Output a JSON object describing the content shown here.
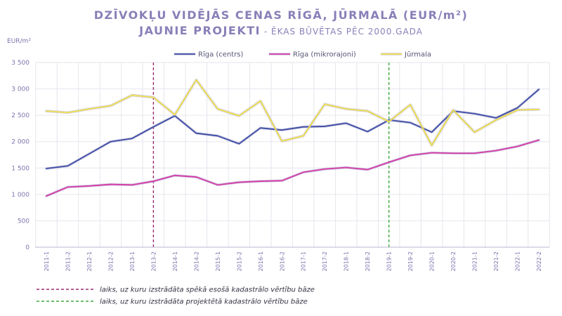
{
  "chart_data": {
    "type": "line",
    "title": "DZĪVOKĻU VIDĒJĀS CENAS RĪGĀ, JŪRMALĀ (EUR/m²)",
    "subtitle": "JAUNIE PROJEKTI",
    "subtitle_tail": " - ĒKAS BŪVĒTAS PĒC 2000.GADA",
    "ylabel": "EUR/m²",
    "ylim": [
      0,
      3500
    ],
    "yticks": [
      0,
      500,
      1000,
      1500,
      2000,
      2500,
      3000,
      3500
    ],
    "ytick_labels": [
      "0",
      "500",
      "1 000",
      "1 500",
      "2 000",
      "2 500",
      "3 000",
      "3 500"
    ],
    "grid": true,
    "legend_position": "top-center",
    "categories": [
      "2011-1",
      "2011-2",
      "2012-1",
      "2012-2",
      "2013-1",
      "2013-2",
      "2014-1",
      "2014-2",
      "2015-1",
      "2015-2",
      "2016-1",
      "2016-2",
      "2017-1",
      "2017-2",
      "2018-1",
      "2018-2",
      "2019-1",
      "2019-2",
      "2020-1",
      "2020-2",
      "2021-1",
      "2021-2",
      "2022-1",
      "2022-2"
    ],
    "series": [
      {
        "name": "Rīga (centrs)",
        "color": "#3f4ea6",
        "values": [
          1490,
          1540,
          1770,
          2000,
          2060,
          2280,
          2490,
          2160,
          2110,
          1960,
          2260,
          2220,
          2280,
          2290,
          2350,
          2190,
          2410,
          2360,
          2180,
          2580,
          2530,
          2450,
          2640,
          2990
        ]
      },
      {
        "name": "Rīga (mikrorajoni)",
        "color": "#d63aa8",
        "values": [
          970,
          1140,
          1160,
          1190,
          1180,
          1250,
          1360,
          1330,
          1180,
          1230,
          1250,
          1260,
          1420,
          1480,
          1510,
          1470,
          1610,
          1740,
          1790,
          1780,
          1780,
          1830,
          1910,
          2030
        ]
      },
      {
        "name": "Jūrmala",
        "color": "#f2e24a",
        "values": [
          2580,
          2550,
          2620,
          2680,
          2880,
          2840,
          2510,
          3170,
          2620,
          2490,
          2770,
          2010,
          2110,
          2710,
          2620,
          2580,
          2380,
          2700,
          1930,
          2600,
          2180,
          2410,
          2600,
          2610
        ]
      }
    ],
    "annotations": [
      {
        "type": "vline",
        "category": "2013-2",
        "color": "#9b2a6f",
        "label": "laiks, uz kuru izstrādāta spēkā esošā kadastrālo vērtību bāze"
      },
      {
        "type": "vline",
        "category": "2019-1",
        "color": "#3aa83a",
        "label": "laiks, uz kuru izstrādāta projektētā kadastrālo vērtību bāze"
      }
    ],
    "colors": {
      "title": "#8a7fb8",
      "axis_text": "#7b74ad",
      "grid": "#e6e6ee",
      "axis_line": "#b8b5cf"
    }
  }
}
